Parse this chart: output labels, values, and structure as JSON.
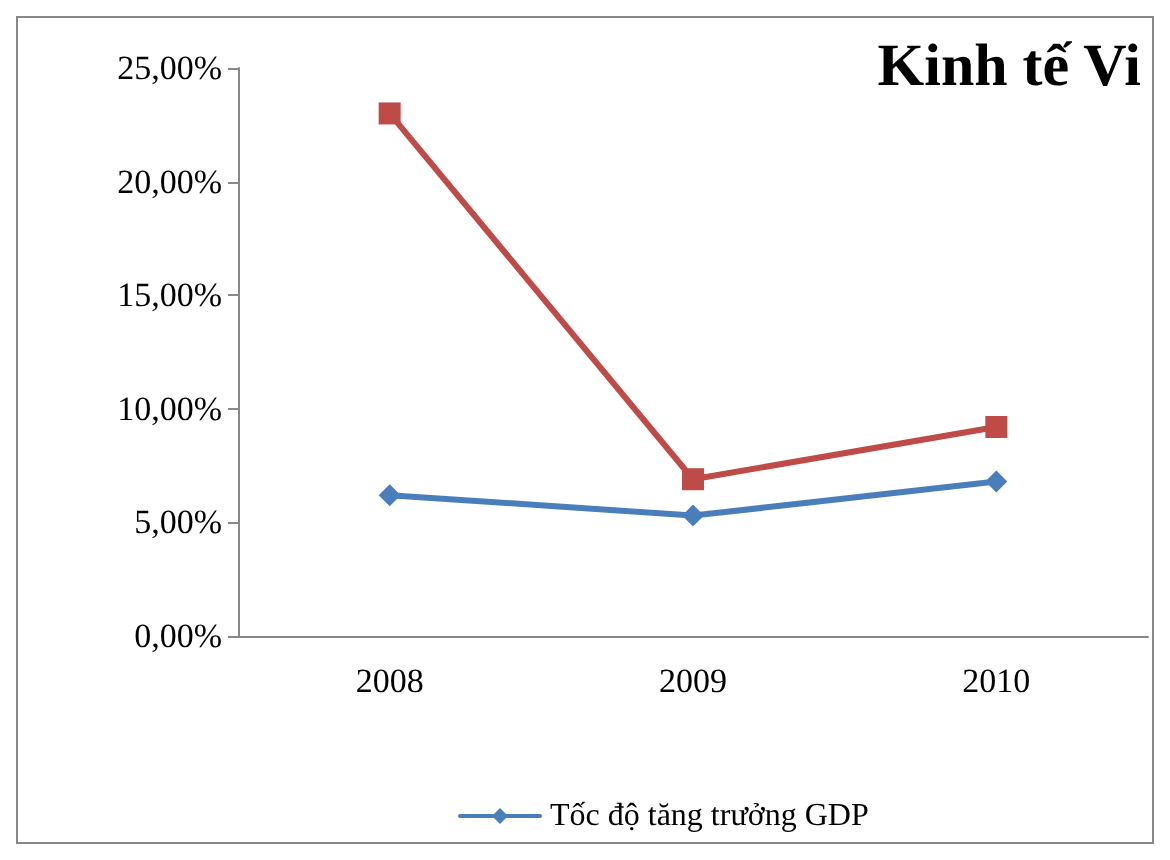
{
  "chart_data": {
    "type": "line",
    "title": "Kinh tế Vi",
    "categories": [
      "2008",
      "2009",
      "2010"
    ],
    "series": [
      {
        "name": "Tốc độ tăng trưởng GDP",
        "color": "#4a7ebb",
        "values": [
          6.2,
          5.3,
          6.8
        ],
        "marker": "diamond"
      },
      {
        "color": "#be4b48",
        "values": [
          23,
          6.9,
          9.2
        ],
        "marker": "square"
      }
    ],
    "ylim": [
      0,
      25
    ],
    "yticks": [
      {
        "value": 0,
        "label": "0,00%"
      },
      {
        "value": 5,
        "label": "5,00%"
      },
      {
        "value": 10,
        "label": "10,00%"
      },
      {
        "value": 15,
        "label": "15,00%"
      },
      {
        "value": 20,
        "label": "20,00%"
      },
      {
        "value": 25,
        "label": "25,00%"
      }
    ],
    "grid": false,
    "legend": "bottom",
    "line_style": "solid"
  }
}
